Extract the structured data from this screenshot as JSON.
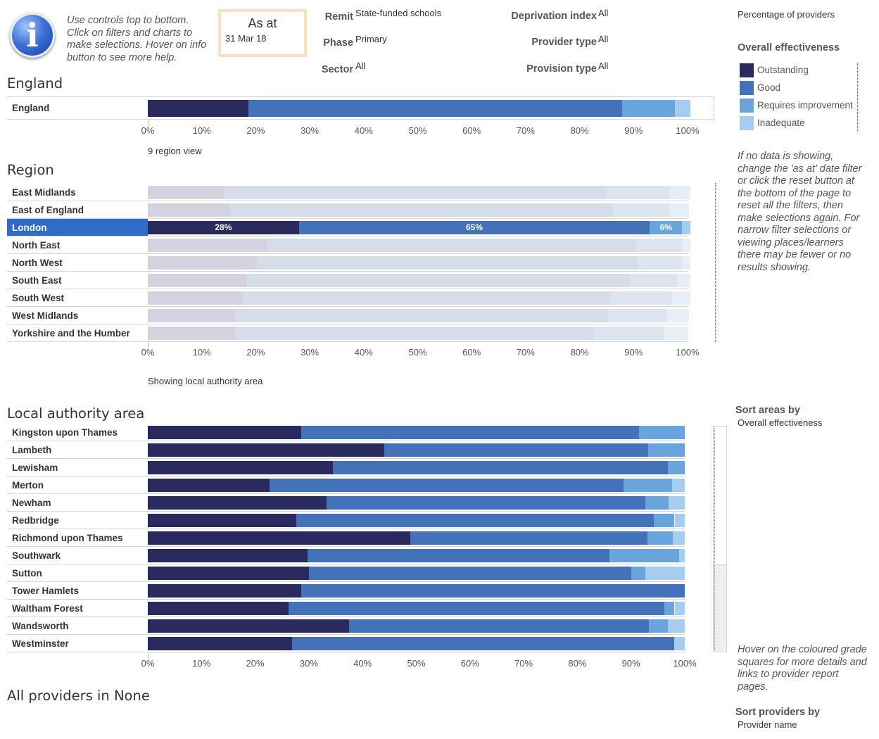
{
  "header": {
    "help_text": "Use controls top to bottom. Click on filters and charts to make selections. Hover on info button to see more help.",
    "as_at": {
      "label": "As at",
      "value": "31 Mar 18"
    },
    "filters": [
      {
        "label": "Remit",
        "value": "State-funded schools"
      },
      {
        "label": "Phase",
        "value": "Primary"
      },
      {
        "label": "Sector",
        "value": "All"
      },
      {
        "label": "Deprivation index",
        "value": "All"
      },
      {
        "label": "Provider type",
        "value": "All"
      },
      {
        "label": "Provision type",
        "value": "All"
      }
    ]
  },
  "legend": {
    "top_title": "Percentage of providers",
    "title": "Overall effectiveness",
    "items": [
      {
        "label": "Outstanding",
        "color": "#2a2a5e"
      },
      {
        "label": "Good",
        "color": "#4472b8"
      },
      {
        "label": "Requires improvement",
        "color": "#6aa4dc"
      },
      {
        "label": "Inadequate",
        "color": "#a6cdf0"
      }
    ]
  },
  "side_help": {
    "no_data": "If no data is showing, change the 'as at' date filter or click the reset button at the bottom of the page to reset all the filters, then make selections again. For narrow filter selections or viewing places/learners there may be fewer or no results showing.",
    "hover": "Hover on the coloured grade squares for more details and links to provider report pages."
  },
  "sort_areas": {
    "title": "Sort areas by",
    "value": "Overall effectiveness"
  },
  "sort_providers": {
    "title": "Sort providers by",
    "value": "Provider name"
  },
  "sections": {
    "england": "England",
    "region_caption": "9 region view",
    "region": "Region",
    "la_caption": "Showing local authority area",
    "la": "Local authority area",
    "providers": "All providers in None"
  },
  "chart_data": [
    {
      "type": "bar",
      "orientation": "horizontal",
      "stacked": true,
      "title": "England",
      "xlim": [
        0,
        100
      ],
      "x_ticks": [
        "0%",
        "10%",
        "20%",
        "30%",
        "40%",
        "50%",
        "60%",
        "70%",
        "80%",
        "90%",
        "100%"
      ],
      "categories": [
        "England"
      ],
      "series": [
        {
          "name": "Outstanding",
          "values": [
            18.7
          ]
        },
        {
          "name": "Good",
          "values": [
            69.2
          ]
        },
        {
          "name": "Requires improvement",
          "values": [
            9.8
          ]
        },
        {
          "name": "Inadequate",
          "values": [
            2.8
          ]
        }
      ]
    },
    {
      "type": "bar",
      "orientation": "horizontal",
      "stacked": true,
      "title": "Region",
      "xlim": [
        0,
        100
      ],
      "x_ticks": [
        "0%",
        "10%",
        "20%",
        "30%",
        "40%",
        "50%",
        "60%",
        "70%",
        "80%",
        "90%",
        "100%"
      ],
      "categories": [
        "East Midlands",
        "East of England",
        "London",
        "North East",
        "North West",
        "South East",
        "South West",
        "West Midlands",
        "Yorkshire and the Humber"
      ],
      "selected": "London",
      "series": [
        {
          "name": "Outstanding",
          "values": [
            14.1,
            15.3,
            28,
            22.2,
            20.2,
            18.3,
            17.6,
            16.1,
            16.2
          ]
        },
        {
          "name": "Good",
          "values": [
            70.9,
            70.8,
            65,
            68.3,
            70.5,
            70.9,
            68.2,
            69.2,
            66.4
          ]
        },
        {
          "name": "Requires improvement",
          "values": [
            11.8,
            10.5,
            6,
            8.5,
            8.3,
            8.8,
            11.3,
            10.8,
            13.1
          ]
        },
        {
          "name": "Inadequate",
          "values": [
            3.7,
            3.7,
            1.5,
            1.5,
            1.5,
            2.5,
            3.4,
            4.2,
            4.4
          ]
        }
      ],
      "data_labels": {
        "London": [
          "28%",
          "65%",
          "6%",
          ""
        ]
      }
    },
    {
      "type": "bar",
      "orientation": "horizontal",
      "stacked": true,
      "title": "Local authority area",
      "xlim": [
        0,
        100
      ],
      "x_ticks": [
        "0%",
        "10%",
        "20%",
        "30%",
        "40%",
        "50%",
        "60%",
        "70%",
        "80%",
        "90%",
        "100%"
      ],
      "categories": [
        "Kingston upon Thames",
        "Lambeth",
        "Lewisham",
        "Merton",
        "Newham",
        "Redbridge",
        "Richmond upon Thames",
        "Southwark",
        "Sutton",
        "Tower Hamlets",
        "Waltham Forest",
        "Wandsworth",
        "Westminster"
      ],
      "series": [
        {
          "name": "Outstanding",
          "values": [
            28.6,
            44.1,
            34.5,
            22.7,
            33.3,
            27.6,
            48.9,
            29.7,
            30.0,
            28.6,
            26.2,
            37.5,
            26.9
          ]
        },
        {
          "name": "Good",
          "values": [
            62.9,
            49.1,
            62.4,
            65.9,
            59.3,
            66.6,
            44.2,
            56.3,
            60.0,
            71.4,
            70.0,
            55.8,
            71.1
          ]
        },
        {
          "name": "Requires improvement",
          "values": [
            8.5,
            6.8,
            3.1,
            9.1,
            4.4,
            3.9,
            4.7,
            12.9,
            2.6,
            0,
            1.9,
            3.5,
            0
          ]
        },
        {
          "name": "Inadequate",
          "values": [
            0,
            0,
            0,
            2.3,
            3.0,
            1.9,
            2.2,
            1.1,
            7.4,
            0,
            1.9,
            3.2,
            2.0
          ]
        }
      ]
    }
  ]
}
